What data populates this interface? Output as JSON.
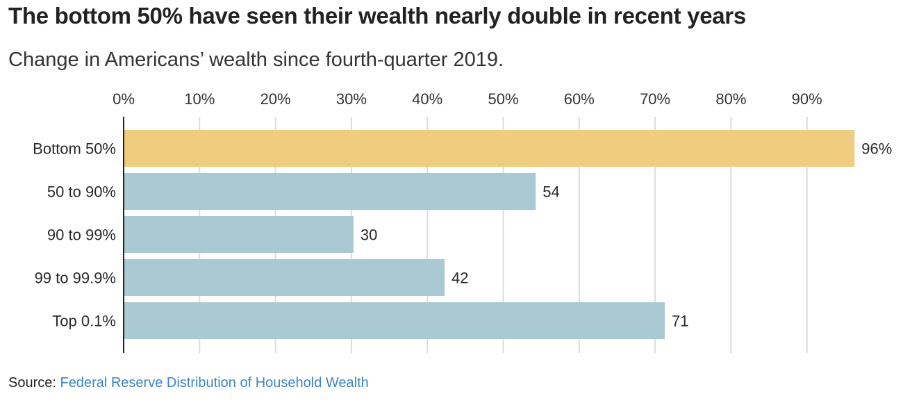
{
  "chart_data": {
    "type": "bar",
    "orientation": "horizontal",
    "title": "The bottom 50% have seen their wealth nearly double in recent years",
    "subtitle": "Change in Americans’ wealth since fourth-quarter 2019.",
    "xlabel": "",
    "ylabel": "",
    "xlim": [
      0,
      96
    ],
    "x_ticks": [
      0,
      10,
      20,
      30,
      40,
      50,
      60,
      70,
      80,
      90
    ],
    "x_tick_labels": [
      "0%",
      "10%",
      "20%",
      "30%",
      "40%",
      "50%",
      "60%",
      "70%",
      "80%",
      "90%"
    ],
    "grid": true,
    "categories": [
      "Bottom 50%",
      "50 to 90%",
      "90 to 99%",
      "99 to 99.9%",
      "Top 0.1%"
    ],
    "values": [
      96,
      54,
      30,
      42,
      71
    ],
    "value_labels": [
      "96%",
      "54",
      "30",
      "42",
      "71"
    ],
    "colors": [
      "#f0cc7e",
      "#a9cad2",
      "#a9cad2",
      "#a9cad2",
      "#a9cad2"
    ],
    "highlight_color": "#f0cc7e",
    "base_color": "#a9cad2"
  },
  "source": {
    "prefix": "Source: ",
    "link_text": "Federal Reserve Distribution of Household Wealth",
    "link_color": "#3d85c6"
  }
}
